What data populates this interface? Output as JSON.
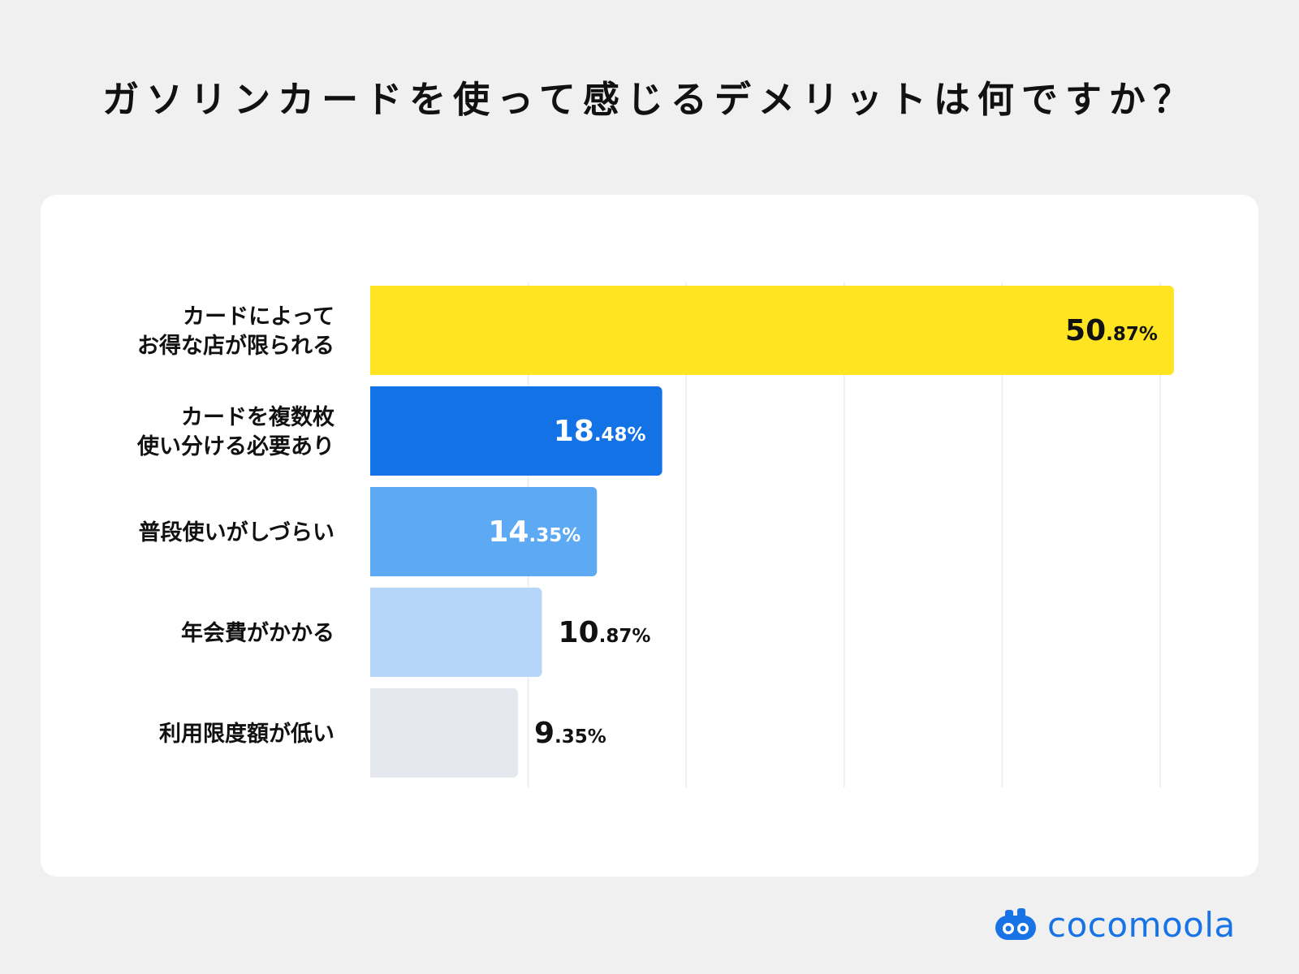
{
  "page_title": "ガソリンカードを使って感じるデメリットは何ですか？",
  "chart_data": {
    "type": "bar",
    "orientation": "horizontal",
    "title": "ガソリンカードを使って感じるデメリットは何ですか？",
    "unit": "%",
    "xlim": [
      0,
      60
    ],
    "grid": true,
    "categories": [
      "カードによって\nお得な店が限られる",
      "カードを複数枚\n使い分ける必要あり",
      "普段使いがしづらい",
      "年会費がかかる",
      "利用限度額が低い"
    ],
    "values": [
      50.87,
      18.48,
      14.35,
      10.87,
      9.35
    ],
    "value_labels": [
      {
        "int": "50",
        "dec": ".87%"
      },
      {
        "int": "18",
        "dec": ".48%"
      },
      {
        "int": "14",
        "dec": ".35%"
      },
      {
        "int": "10",
        "dec": ".87%"
      },
      {
        "int": "9",
        "dec": ".35%"
      }
    ],
    "colors": [
      "#ffe422",
      "#1272e6",
      "#5ea9f4",
      "#b5d6f9",
      "#e4e8ee"
    ],
    "label_colors": [
      "#111111",
      "#ffffff",
      "#ffffff",
      "#111111",
      "#111111"
    ],
    "label_inside": [
      true,
      true,
      true,
      false,
      false
    ]
  },
  "logo": {
    "name": "cocomoola",
    "icon": "piggy-bank-icon",
    "color": "#1773e6"
  }
}
